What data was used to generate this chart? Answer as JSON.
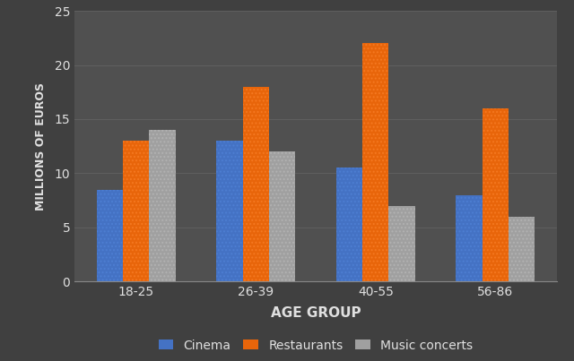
{
  "categories": [
    "18-25",
    "26-39",
    "40-55",
    "56-86"
  ],
  "series": {
    "Cinema": [
      8.5,
      13.0,
      10.5,
      8.0
    ],
    "Restaurants": [
      13.0,
      18.0,
      22.0,
      16.0
    ],
    "Music concerts": [
      14.0,
      12.0,
      7.0,
      6.0
    ]
  },
  "bar_colors": {
    "Cinema": "#4472C4",
    "Restaurants": "#E8650A",
    "Music concerts": "#A0A0A0"
  },
  "hatch_colors": {
    "Cinema": "#5588DD",
    "Restaurants": "#FF8833",
    "Music concerts": "#C0C0C0"
  },
  "xlabel": "AGE GROUP",
  "ylabel": "MILLIONS OF EUROS",
  "ylim": [
    0,
    25
  ],
  "yticks": [
    0,
    5,
    10,
    15,
    20,
    25
  ],
  "background_color": "#404040",
  "axes_background": "#505050",
  "text_color": "#e0e0e0",
  "grid_color": "#606060",
  "bar_width": 0.22,
  "xlabel_fontsize": 11,
  "ylabel_fontsize": 9,
  "tick_fontsize": 10,
  "legend_fontsize": 10
}
